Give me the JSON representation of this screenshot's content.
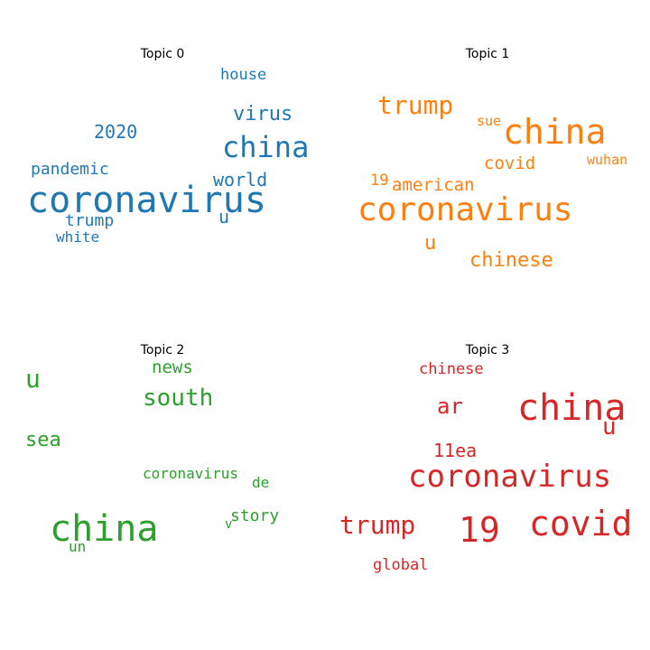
{
  "chart_data": {
    "type": "wordcloud",
    "panels": [
      {
        "title": "Topic 0",
        "color": "#1f77b4",
        "words": [
          {
            "text": "coronavirus",
            "size": 40
          },
          {
            "text": "china",
            "size": 32
          },
          {
            "text": "virus",
            "size": 22
          },
          {
            "text": "2020",
            "size": 20
          },
          {
            "text": "world",
            "size": 20
          },
          {
            "text": "pandemic",
            "size": 18
          },
          {
            "text": "trump",
            "size": 18
          },
          {
            "text": "house",
            "size": 17
          },
          {
            "text": "white",
            "size": 16
          },
          {
            "text": "u",
            "size": 20
          }
        ]
      },
      {
        "title": "Topic 1",
        "color": "#ff7f0e",
        "words": [
          {
            "text": "china",
            "size": 38
          },
          {
            "text": "coronavirus",
            "size": 36
          },
          {
            "text": "trump",
            "size": 28
          },
          {
            "text": "chinese",
            "size": 22
          },
          {
            "text": "american",
            "size": 19
          },
          {
            "text": "covid",
            "size": 19
          },
          {
            "text": "u",
            "size": 22
          },
          {
            "text": "19",
            "size": 17
          },
          {
            "text": "wuhan",
            "size": 15
          },
          {
            "text": "sue",
            "size": 15
          }
        ]
      },
      {
        "title": "Topic 2",
        "color": "#2ca02c",
        "words": [
          {
            "text": "china",
            "size": 40
          },
          {
            "text": "south",
            "size": 26
          },
          {
            "text": "sea",
            "size": 22
          },
          {
            "text": "u",
            "size": 28
          },
          {
            "text": "news",
            "size": 19
          },
          {
            "text": "coronavirus",
            "size": 16
          },
          {
            "text": "story",
            "size": 18
          },
          {
            "text": "de",
            "size": 16
          },
          {
            "text": "un",
            "size": 16
          },
          {
            "text": "v",
            "size": 14
          }
        ]
      },
      {
        "title": "Topic 3",
        "color": "#d62728",
        "words": [
          {
            "text": "china",
            "size": 40
          },
          {
            "text": "covid",
            "size": 38
          },
          {
            "text": "coronavirus",
            "size": 34
          },
          {
            "text": "19",
            "size": 38
          },
          {
            "text": "trump",
            "size": 28
          },
          {
            "text": "ar",
            "size": 24
          },
          {
            "text": "11ea",
            "size": 20
          },
          {
            "text": "u",
            "size": 26
          },
          {
            "text": "chinese",
            "size": 17
          },
          {
            "text": "global",
            "size": 17
          }
        ]
      }
    ]
  }
}
